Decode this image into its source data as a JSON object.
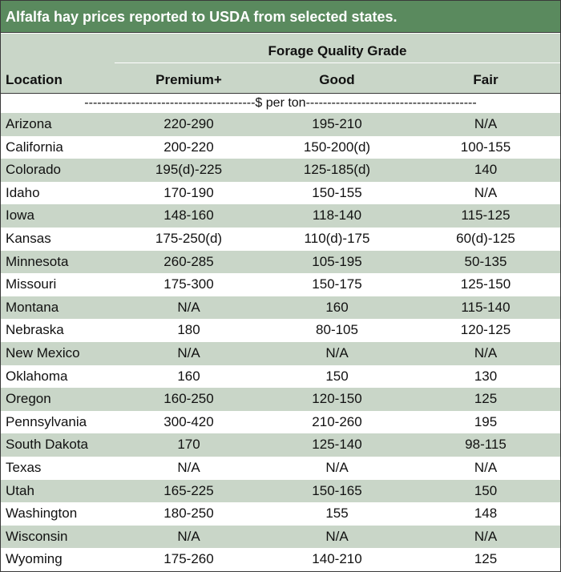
{
  "title": "Alfalfa hay prices reported to USDA from selected states.",
  "header": {
    "group_label": "Forage Quality Grade",
    "columns": [
      "Location",
      "Premium+",
      "Good",
      "Fair"
    ],
    "unit_text": "----------------------------------------$ per ton----------------------------------------"
  },
  "rows": [
    {
      "location": "Arizona",
      "premium": "220-290",
      "good": "195-210",
      "fair": "N/A"
    },
    {
      "location": "California",
      "premium": "200-220",
      "good": "150-200(d)",
      "fair": "100-155"
    },
    {
      "location": "Colorado",
      "premium": "195(d)-225",
      "good": "125-185(d)",
      "fair": "140"
    },
    {
      "location": "Idaho",
      "premium": "170-190",
      "good": "150-155",
      "fair": "N/A"
    },
    {
      "location": "Iowa",
      "premium": "148-160",
      "good": "118-140",
      "fair": "115-125"
    },
    {
      "location": "Kansas",
      "premium": "175-250(d)",
      "good": "110(d)-175",
      "fair": "60(d)-125"
    },
    {
      "location": "Minnesota",
      "premium": "260-285",
      "good": "105-195",
      "fair": "50-135"
    },
    {
      "location": "Missouri",
      "premium": "175-300",
      "good": "150-175",
      "fair": "125-150"
    },
    {
      "location": "Montana",
      "premium": "N/A",
      "good": "160",
      "fair": "115-140"
    },
    {
      "location": "Nebraska",
      "premium": "180",
      "good": "80-105",
      "fair": "120-125"
    },
    {
      "location": "New Mexico",
      "premium": "N/A",
      "good": "N/A",
      "fair": "N/A"
    },
    {
      "location": "Oklahoma",
      "premium": "160",
      "good": "150",
      "fair": "130"
    },
    {
      "location": "Oregon",
      "premium": "160-250",
      "good": "120-150",
      "fair": "125"
    },
    {
      "location": "Pennsylvania",
      "premium": "300-420",
      "good": "210-260",
      "fair": "195"
    },
    {
      "location": "South Dakota",
      "premium": "170",
      "good": "125-140",
      "fair": "98-115"
    },
    {
      "location": "Texas",
      "premium": "N/A",
      "good": "N/A",
      "fair": "N/A"
    },
    {
      "location": "Utah",
      "premium": "165-225",
      "good": "150-165",
      "fair": "150"
    },
    {
      "location": "Washington",
      "premium": "180-250",
      "good": "155",
      "fair": "148"
    },
    {
      "location": "Wisconsin",
      "premium": "N/A",
      "good": "N/A",
      "fair": "N/A"
    },
    {
      "location": "Wyoming",
      "premium": "175-260",
      "good": "140-210",
      "fair": "125"
    }
  ],
  "colors": {
    "title_bg": "#5a8a5e",
    "header_bg": "#c9d6c8",
    "alt_row_bg": "#c9d6c8",
    "border": "#3a3a3a"
  }
}
